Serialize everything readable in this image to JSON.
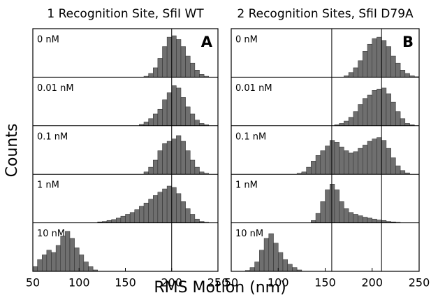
{
  "figure": {
    "xlabel": "RMS Motion (nm)",
    "ylabel": "Counts"
  },
  "chart_data": [
    {
      "type": "histogram",
      "title": "1 Recognition Site, SfiI WT",
      "panel_label": "A",
      "color": "#6f6f6f",
      "xlim": [
        50,
        250
      ],
      "xticks": [
        50,
        100,
        150,
        200,
        250
      ],
      "ylim": [
        0,
        100
      ],
      "vlines": [
        200
      ],
      "bins": [
        50,
        55,
        60,
        65,
        70,
        75,
        80,
        85,
        90,
        95,
        100,
        105,
        110,
        115,
        120,
        125,
        130,
        135,
        140,
        145,
        150,
        155,
        160,
        165,
        170,
        175,
        180,
        185,
        190,
        195,
        200,
        205,
        210,
        215,
        220,
        225,
        230,
        235,
        240,
        245,
        250
      ],
      "series": [
        {
          "name": "0 nM",
          "values": [
            0,
            0,
            0,
            0,
            0,
            0,
            0,
            0,
            0,
            0,
            0,
            0,
            0,
            0,
            0,
            0,
            0,
            0,
            0,
            0,
            0,
            0,
            0,
            0,
            2,
            8,
            20,
            40,
            65,
            85,
            88,
            80,
            65,
            45,
            30,
            15,
            6,
            2,
            0,
            0
          ]
        },
        {
          "name": "0.01 nM",
          "values": [
            0,
            0,
            0,
            0,
            0,
            0,
            0,
            0,
            0,
            0,
            0,
            0,
            0,
            0,
            0,
            0,
            0,
            0,
            0,
            0,
            0,
            0,
            0,
            3,
            8,
            15,
            25,
            35,
            55,
            70,
            85,
            80,
            60,
            40,
            25,
            12,
            5,
            2,
            0,
            0
          ]
        },
        {
          "name": "0.1 nM",
          "values": [
            0,
            0,
            0,
            0,
            0,
            0,
            0,
            0,
            0,
            0,
            0,
            0,
            0,
            0,
            0,
            0,
            0,
            0,
            0,
            0,
            0,
            0,
            0,
            0,
            5,
            15,
            30,
            50,
            65,
            70,
            75,
            82,
            70,
            50,
            30,
            15,
            5,
            2,
            0,
            0
          ]
        },
        {
          "name": "1 nM",
          "values": [
            0,
            0,
            0,
            0,
            0,
            0,
            0,
            0,
            0,
            0,
            0,
            0,
            0,
            0,
            2,
            3,
            5,
            7,
            10,
            14,
            18,
            22,
            28,
            35,
            42,
            50,
            58,
            65,
            72,
            78,
            75,
            62,
            45,
            30,
            18,
            8,
            3,
            1,
            0,
            0
          ]
        },
        {
          "name": "10 nM",
          "values": [
            10,
            25,
            35,
            45,
            40,
            55,
            75,
            85,
            70,
            50,
            35,
            20,
            10,
            3,
            0,
            0,
            0,
            0,
            0,
            0,
            0,
            0,
            0,
            0,
            0,
            0,
            0,
            0,
            0,
            0,
            0,
            0,
            0,
            0,
            0,
            0,
            0,
            0,
            0,
            0
          ]
        }
      ]
    },
    {
      "type": "histogram",
      "title": "2 Recognition Sites, SfiI D79A",
      "panel_label": "B",
      "color": "#6f6f6f",
      "xlim": [
        50,
        250
      ],
      "xticks": [
        50,
        100,
        150,
        200,
        250
      ],
      "ylim": [
        0,
        100
      ],
      "vlines": [
        157,
        210
      ],
      "bins": [
        50,
        55,
        60,
        65,
        70,
        75,
        80,
        85,
        90,
        95,
        100,
        105,
        110,
        115,
        120,
        125,
        130,
        135,
        140,
        145,
        150,
        155,
        160,
        165,
        170,
        175,
        180,
        185,
        190,
        195,
        200,
        205,
        210,
        215,
        220,
        225,
        230,
        235,
        240,
        245,
        250
      ],
      "series": [
        {
          "name": "0 nM",
          "values": [
            0,
            0,
            0,
            0,
            0,
            0,
            0,
            0,
            0,
            0,
            0,
            0,
            0,
            0,
            0,
            0,
            0,
            0,
            0,
            0,
            0,
            0,
            0,
            0,
            3,
            10,
            20,
            35,
            55,
            70,
            82,
            85,
            78,
            65,
            45,
            30,
            15,
            8,
            3,
            1
          ]
        },
        {
          "name": "0.01 nM",
          "values": [
            0,
            0,
            0,
            0,
            0,
            0,
            0,
            0,
            0,
            0,
            0,
            0,
            0,
            0,
            0,
            0,
            0,
            0,
            0,
            0,
            0,
            0,
            2,
            5,
            10,
            18,
            30,
            45,
            58,
            65,
            75,
            78,
            80,
            68,
            50,
            30,
            15,
            5,
            2,
            0
          ]
        },
        {
          "name": "0.1 nM",
          "values": [
            0,
            0,
            0,
            0,
            0,
            0,
            0,
            0,
            0,
            0,
            0,
            0,
            0,
            0,
            2,
            5,
            15,
            28,
            40,
            50,
            60,
            72,
            68,
            58,
            50,
            45,
            48,
            55,
            62,
            70,
            75,
            78,
            72,
            55,
            35,
            18,
            8,
            3,
            0,
            0
          ]
        },
        {
          "name": "1 nM",
          "values": [
            0,
            0,
            0,
            0,
            0,
            0,
            0,
            0,
            0,
            0,
            0,
            0,
            0,
            0,
            0,
            0,
            0,
            5,
            20,
            45,
            70,
            82,
            70,
            45,
            30,
            22,
            18,
            15,
            12,
            10,
            8,
            6,
            5,
            3,
            2,
            1,
            0,
            0,
            0,
            0
          ]
        },
        {
          "name": "10 nM",
          "values": [
            0,
            0,
            0,
            2,
            8,
            20,
            45,
            70,
            80,
            60,
            40,
            25,
            15,
            8,
            3,
            0,
            0,
            0,
            0,
            0,
            0,
            0,
            0,
            0,
            0,
            0,
            0,
            0,
            0,
            0,
            0,
            0,
            0,
            0,
            0,
            0,
            0,
            0,
            0,
            0
          ]
        }
      ]
    }
  ]
}
